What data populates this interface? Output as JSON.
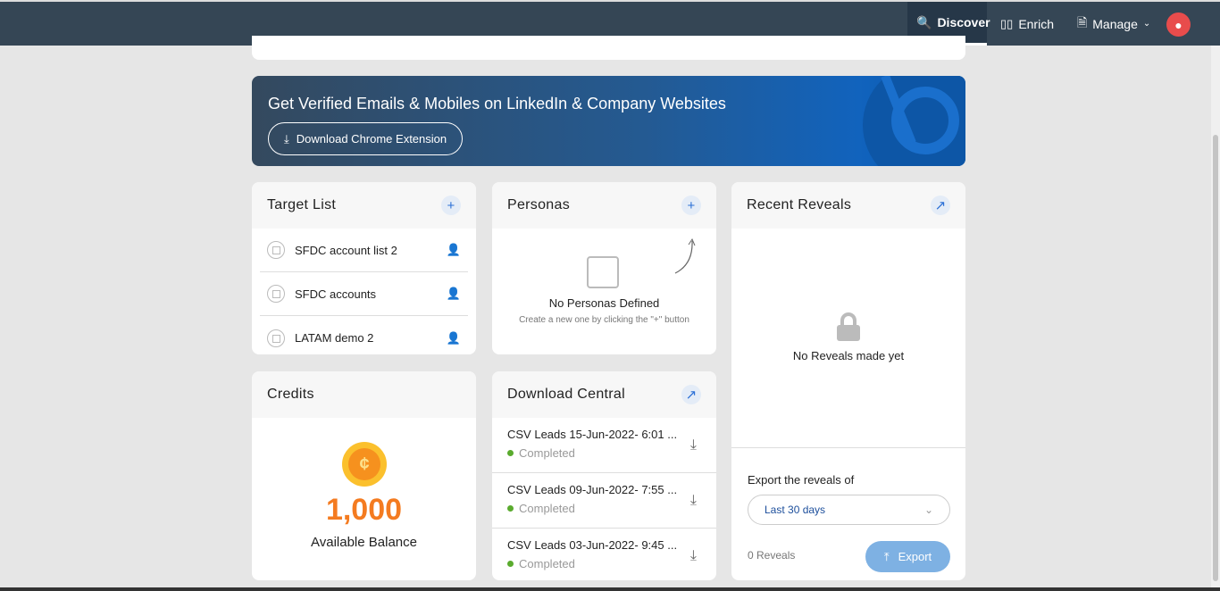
{
  "nav": {
    "items": [
      {
        "label": "Discover",
        "icon": "search-globe-icon",
        "active": true
      },
      {
        "label": "Enrich",
        "icon": "bar-chart-icon"
      },
      {
        "label": "Manage",
        "icon": "document-gear-icon"
      }
    ],
    "avatar": "panda-avatar"
  },
  "banner": {
    "title": "Get Verified Emails & Mobiles on LinkedIn & Company Websites",
    "button": "Download Chrome Extension",
    "accent": "#1163bd"
  },
  "target_list": {
    "title": "Target List",
    "items": [
      "SFDC account list 2",
      "SFDC accounts",
      "LATAM demo 2"
    ]
  },
  "personas": {
    "title": "Personas",
    "empty_title": "No Personas Defined",
    "empty_hint": "Create a new one by clicking the \"+\" button"
  },
  "recent_reveals": {
    "title": "Recent Reveals",
    "empty": "No Reveals made yet",
    "export_label": "Export the reveals of",
    "range": "Last 30 days",
    "count": "0 Reveals",
    "export_button": "Export"
  },
  "credits": {
    "title": "Credits",
    "amount": "1,000",
    "caption": "Available Balance",
    "color": "#f47b20"
  },
  "download_central": {
    "title": "Download Central",
    "items": [
      {
        "name": "CSV Leads 15-Jun-2022- 6:01 ...",
        "status": "Completed"
      },
      {
        "name": "CSV Leads 09-Jun-2022- 7:55 ...",
        "status": "Completed"
      },
      {
        "name": "CSV Leads 03-Jun-2022- 9:45 ...",
        "status": "Completed"
      }
    ]
  }
}
